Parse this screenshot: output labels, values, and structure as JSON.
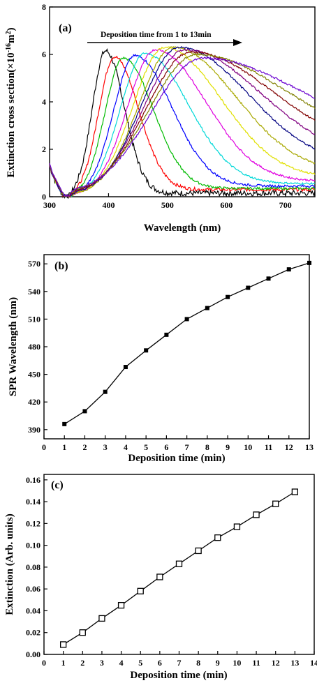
{
  "chart_data": [
    {
      "panel": "(a)",
      "type": "line",
      "xlabel": "Wavelength (nm)",
      "ylabel_main": "Extinction cross section(×10",
      "ylabel_exp": "-16",
      "ylabel_unit": "m",
      "ylabel_unit_exp": "2",
      "ylabel_close": ")",
      "xlim": [
        300,
        750
      ],
      "ylim": [
        0,
        8
      ],
      "xticks": [
        300,
        400,
        500,
        600,
        700
      ],
      "yticks": [
        0,
        2,
        4,
        6,
        8
      ],
      "annotation": "Deposition time from 1 to 13min",
      "series": [
        {
          "color": "#000000",
          "peak_x": 395,
          "peak_y": 6.15,
          "sigma_l": 32,
          "sigma_r": 45,
          "tail": 0.15,
          "noise": 0.12
        },
        {
          "color": "#ff0000",
          "peak_x": 410,
          "peak_y": 5.9,
          "sigma_l": 38,
          "sigma_r": 58,
          "tail": 0.3,
          "noise": 0.07
        },
        {
          "color": "#00bb00",
          "peak_x": 425,
          "peak_y": 5.85,
          "sigma_l": 44,
          "sigma_r": 72,
          "tail": 0.35,
          "noise": 0.05
        },
        {
          "color": "#0000ff",
          "peak_x": 445,
          "peak_y": 5.95,
          "sigma_l": 52,
          "sigma_r": 88,
          "tail": 0.45,
          "noise": 0.05
        },
        {
          "color": "#00d8d8",
          "peak_x": 462,
          "peak_y": 6.05,
          "sigma_l": 60,
          "sigma_r": 104,
          "tail": 0.55,
          "noise": 0.04
        },
        {
          "color": "#e000e0",
          "peak_x": 480,
          "peak_y": 6.2,
          "sigma_l": 68,
          "sigma_r": 120,
          "tail": 0.65,
          "noise": 0.04
        },
        {
          "color": "#e0e000",
          "peak_x": 495,
          "peak_y": 6.3,
          "sigma_l": 76,
          "sigma_r": 135,
          "tail": 0.8,
          "noise": 0.04
        },
        {
          "color": "#a8a800",
          "peak_x": 510,
          "peak_y": 6.3,
          "sigma_l": 84,
          "sigma_r": 150,
          "tail": 1.0,
          "noise": 0.04
        },
        {
          "color": "#000080",
          "peak_x": 520,
          "peak_y": 6.3,
          "sigma_l": 92,
          "sigma_r": 165,
          "tail": 1.3,
          "noise": 0.04
        },
        {
          "color": "#800080",
          "peak_x": 530,
          "peak_y": 6.2,
          "sigma_l": 100,
          "sigma_r": 180,
          "tail": 1.6,
          "noise": 0.04
        },
        {
          "color": "#800000",
          "peak_x": 540,
          "peak_y": 6.1,
          "sigma_l": 108,
          "sigma_r": 195,
          "tail": 1.9,
          "noise": 0.04
        },
        {
          "color": "#808000",
          "peak_x": 550,
          "peak_y": 6.0,
          "sigma_l": 116,
          "sigma_r": 210,
          "tail": 2.2,
          "noise": 0.04
        },
        {
          "color": "#6a00d0",
          "peak_x": 560,
          "peak_y": 5.85,
          "sigma_l": 124,
          "sigma_r": 225,
          "tail": 2.55,
          "noise": 0.04
        }
      ]
    },
    {
      "panel": "(b)",
      "type": "line",
      "xlabel": "Deposition time (min)",
      "ylabel": "SPR Wavelength (nm)",
      "xlim": [
        0,
        13
      ],
      "ylim": [
        380,
        580
      ],
      "xticks": [
        0,
        1,
        2,
        3,
        4,
        5,
        6,
        7,
        8,
        9,
        10,
        11,
        12,
        13
      ],
      "yticks": [
        390,
        420,
        450,
        480,
        510,
        540,
        570
      ],
      "x": [
        1,
        2,
        3,
        4,
        5,
        6,
        7,
        8,
        9,
        10,
        11,
        12,
        13
      ],
      "y": [
        396,
        410,
        431,
        458,
        476,
        493,
        510,
        522,
        534,
        544,
        554,
        564,
        571
      ],
      "marker": "filled-square"
    },
    {
      "panel": "(c)",
      "type": "line",
      "xlabel": "Deposition time (min)",
      "ylabel": "Extinction (Arb. units)",
      "xlim": [
        0,
        14
      ],
      "ylim": [
        0,
        0.165
      ],
      "xticks": [
        0,
        1,
        2,
        3,
        4,
        5,
        6,
        7,
        8,
        9,
        10,
        11,
        12,
        13,
        14
      ],
      "yticks": [
        "0.00",
        "0.02",
        "0.04",
        "0.06",
        "0.08",
        "0.10",
        "0.12",
        "0.14",
        "0.16"
      ],
      "x": [
        1,
        2,
        3,
        4,
        5,
        6,
        7,
        8,
        9,
        10,
        11,
        12,
        13
      ],
      "y": [
        0.009,
        0.02,
        0.033,
        0.045,
        0.058,
        0.071,
        0.083,
        0.095,
        0.107,
        0.117,
        0.128,
        0.138,
        0.149
      ],
      "marker": "open-square"
    }
  ]
}
